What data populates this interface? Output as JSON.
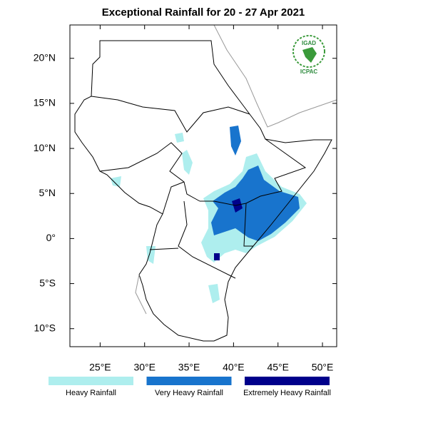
{
  "title": "Exceptional Rainfall for 20 - 27 Apr 2021",
  "map": {
    "xlim": [
      21.6,
      51.6
    ],
    "ylim": [
      -12,
      23.7
    ],
    "xticks": [
      {
        "value": 25,
        "label": "25°E"
      },
      {
        "value": 30,
        "label": "30°E"
      },
      {
        "value": 35,
        "label": "35°E"
      },
      {
        "value": 40,
        "label": "40°E"
      },
      {
        "value": 45,
        "label": "45°E"
      },
      {
        "value": 50,
        "label": "50°E"
      }
    ],
    "yticks": [
      {
        "value": 20,
        "label": "20°N"
      },
      {
        "value": 15,
        "label": "15°N"
      },
      {
        "value": 10,
        "label": "10°N"
      },
      {
        "value": 5,
        "label": "5°N"
      },
      {
        "value": 0,
        "label": "0°"
      },
      {
        "value": -5,
        "label": "5°S"
      },
      {
        "value": -10,
        "label": "10°S"
      }
    ]
  },
  "legend": [
    {
      "label": "Heavy Rainfall",
      "color": "#aeeeee"
    },
    {
      "label": "Very Heavy Rainfall",
      "color": "#1874cd"
    },
    {
      "label": "Extremely Heavy Rainfall",
      "color": "#00008b"
    }
  ],
  "logo": {
    "top": "IGAD",
    "bottom": "ICPAC"
  }
}
